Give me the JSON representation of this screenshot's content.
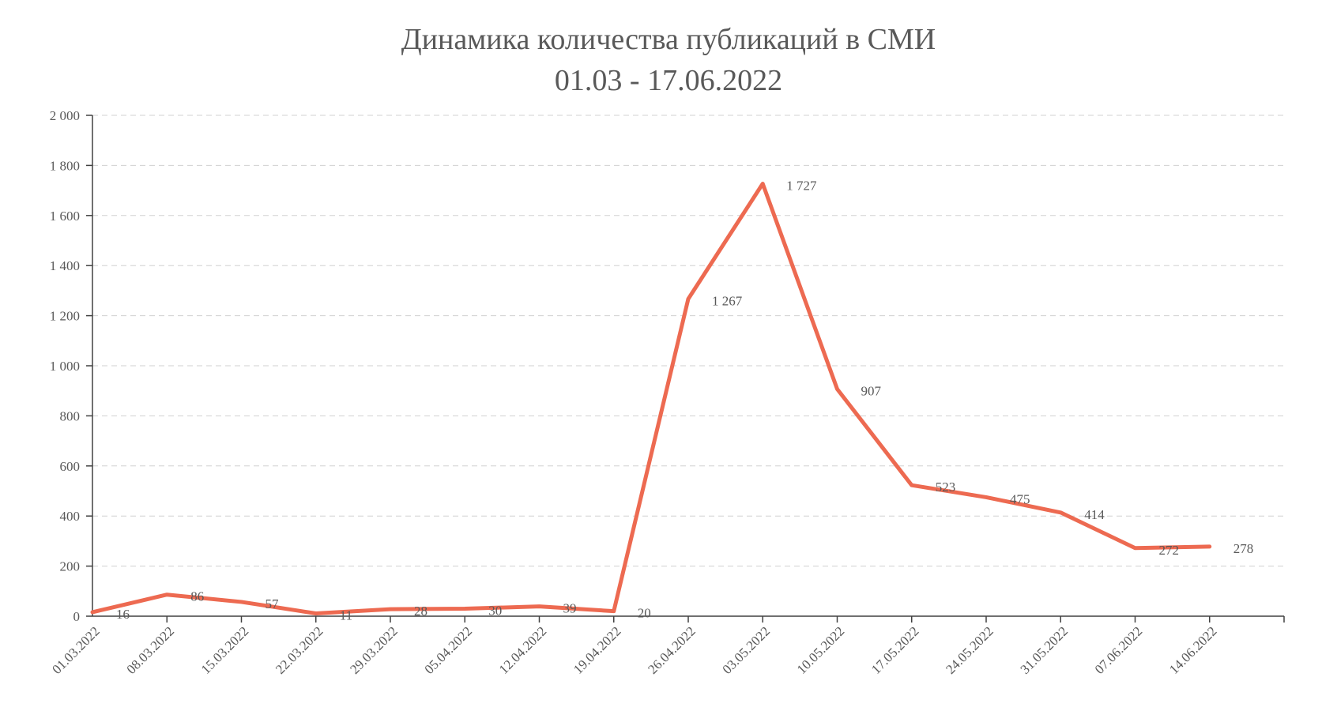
{
  "chart_data": {
    "type": "line",
    "title": "Динамика количества публикаций в СМИ",
    "subtitle": "01.03  - 17.06.2022",
    "xlabel": "",
    "ylabel": "",
    "ylim": [
      0,
      2000
    ],
    "y_ticks": [
      0,
      200,
      400,
      600,
      800,
      1000,
      1200,
      1400,
      1600,
      1800,
      2000
    ],
    "y_tick_labels": [
      "0",
      "200",
      "400",
      "600",
      "800",
      "1 000",
      "1 200",
      "1 400",
      "1 600",
      "1 800",
      "2 000"
    ],
    "categories": [
      "01.03.2022",
      "08.03.2022",
      "15.03.2022",
      "22.03.2022",
      "29.03.2022",
      "05.04.2022",
      "12.04.2022",
      "19.04.2022",
      "26.04.2022",
      "03.05.2022",
      "10.05.2022",
      "17.05.2022",
      "24.05.2022",
      "31.05.2022",
      "07.06.2022",
      "14.06.2022"
    ],
    "values": [
      16,
      86,
      57,
      11,
      28,
      30,
      39,
      20,
      1267,
      1727,
      907,
      523,
      475,
      414,
      272,
      278
    ],
    "data_labels": [
      "16",
      "86",
      "57",
      "11",
      "28",
      "30",
      "39",
      "20",
      "1 267",
      "1 727",
      "907",
      "523",
      "475",
      "414",
      "272",
      "278"
    ],
    "grid": true,
    "legend": "none",
    "line_color": "#ED6A51"
  }
}
